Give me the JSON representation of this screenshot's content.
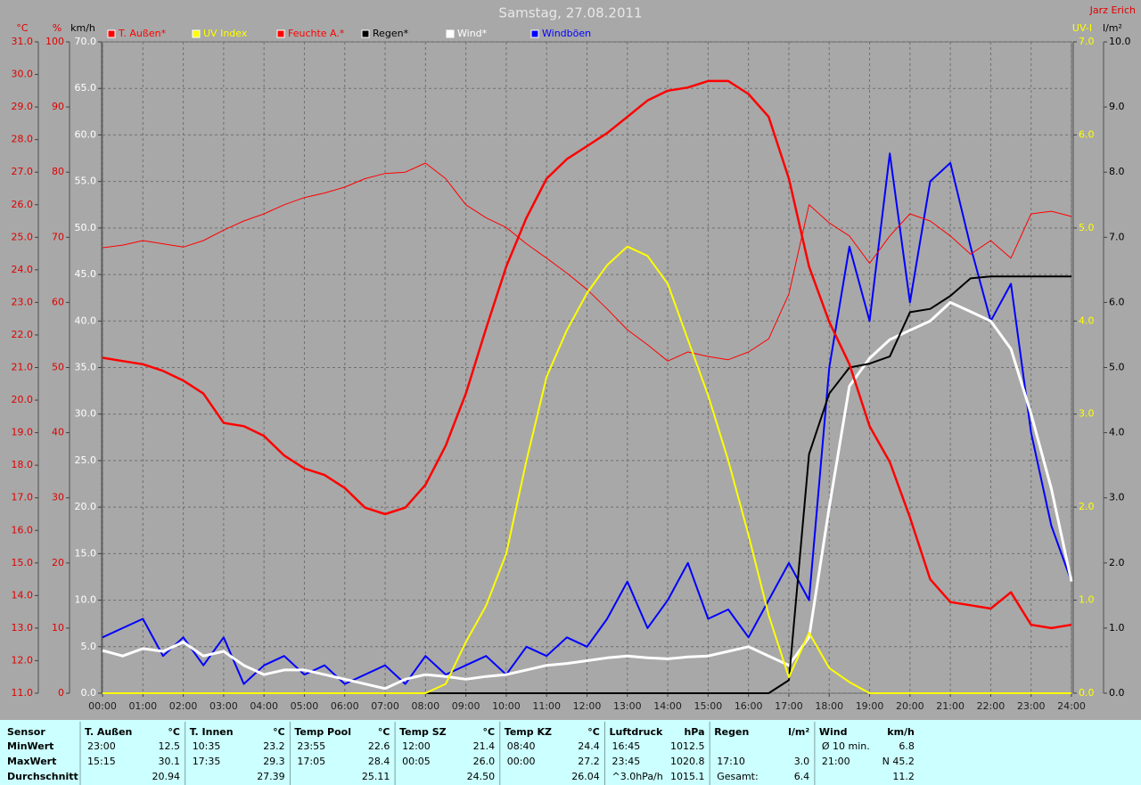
{
  "chart_data": {
    "type": "line",
    "title": "Samstag, 27.08.2011",
    "author": "Jarz Erich",
    "xlim": [
      0,
      24
    ],
    "xticks": [
      {
        "value": 0,
        "label": "00:00"
      },
      {
        "value": 1,
        "label": "01:00"
      },
      {
        "value": 2,
        "label": "02:00"
      },
      {
        "value": 3,
        "label": "03:00"
      },
      {
        "value": 4,
        "label": "04:00"
      },
      {
        "value": 5,
        "label": "05:00"
      },
      {
        "value": 6,
        "label": "06:00"
      },
      {
        "value": 7,
        "label": "07:00"
      },
      {
        "value": 8,
        "label": "08:00"
      },
      {
        "value": 9,
        "label": "09:00"
      },
      {
        "value": 10,
        "label": "10:00"
      },
      {
        "value": 11,
        "label": "11:00"
      },
      {
        "value": 12,
        "label": "12:00"
      },
      {
        "value": 13,
        "label": "13:00"
      },
      {
        "value": 14,
        "label": "14:00"
      },
      {
        "value": 15,
        "label": "15:00"
      },
      {
        "value": 16,
        "label": "16:00"
      },
      {
        "value": 17,
        "label": "17:00"
      },
      {
        "value": 18,
        "label": "18:00"
      },
      {
        "value": 19,
        "label": "19:00"
      },
      {
        "value": 20,
        "label": "20:00"
      },
      {
        "value": 21,
        "label": "21:00"
      },
      {
        "value": 22,
        "label": "22:00"
      },
      {
        "value": 23,
        "label": "23:00"
      },
      {
        "value": 24,
        "label": "24:00"
      }
    ],
    "y_axes": [
      {
        "label": "°C",
        "color": "#e00000",
        "ylim": [
          11,
          31
        ],
        "yticks": [
          {
            "value": 11,
            "label": "11.0"
          },
          {
            "value": 12,
            "label": "12.0"
          },
          {
            "value": 13,
            "label": "13.0"
          },
          {
            "value": 14,
            "label": "14.0"
          },
          {
            "value": 15,
            "label": "15.0"
          },
          {
            "value": 16,
            "label": "16.0"
          },
          {
            "value": 17,
            "label": "17.0"
          },
          {
            "value": 18,
            "label": "18.0"
          },
          {
            "value": 19,
            "label": "19.0"
          },
          {
            "value": 20,
            "label": "20.0"
          },
          {
            "value": 21,
            "label": "21.0"
          },
          {
            "value": 22,
            "label": "22.0"
          },
          {
            "value": 23,
            "label": "23.0"
          },
          {
            "value": 24,
            "label": "24.0"
          },
          {
            "value": 25,
            "label": "25.0"
          },
          {
            "value": 26,
            "label": "26.0"
          },
          {
            "value": 27,
            "label": "27.0"
          },
          {
            "value": 28,
            "label": "28.0"
          },
          {
            "value": 29,
            "label": "29.0"
          },
          {
            "value": 30,
            "label": "30.0"
          },
          {
            "value": 31,
            "label": "31.0"
          }
        ]
      },
      {
        "label": "%",
        "color": "#e00000",
        "ylim": [
          0,
          100
        ],
        "yticks": [
          0,
          10,
          20,
          30,
          40,
          50,
          60,
          70,
          80,
          90,
          100
        ]
      },
      {
        "label": "km/h",
        "color": "#ffffff",
        "ylim": [
          0,
          70
        ],
        "grid": true,
        "yticks": [
          {
            "value": 0,
            "label": "0.0"
          },
          {
            "value": 5,
            "label": "5.0"
          },
          {
            "value": 10,
            "label": "10.0"
          },
          {
            "value": 15,
            "label": "15.0"
          },
          {
            "value": 20,
            "label": "20.0"
          },
          {
            "value": 25,
            "label": "25.0"
          },
          {
            "value": 30,
            "label": "30.0"
          },
          {
            "value": 35,
            "label": "35.0"
          },
          {
            "value": 40,
            "label": "40.0"
          },
          {
            "value": 45,
            "label": "45.0"
          },
          {
            "value": 50,
            "label": "50.0"
          },
          {
            "value": 55,
            "label": "55.0"
          },
          {
            "value": 60,
            "label": "60.0"
          },
          {
            "value": 65,
            "label": "65.0"
          },
          {
            "value": 70,
            "label": "70.0"
          }
        ]
      },
      {
        "label": "UV-I",
        "color": "#ffff00",
        "ylim": [
          0,
          7
        ],
        "yticks": [
          {
            "value": 0,
            "label": "0.0"
          },
          {
            "value": 1,
            "label": "1.0"
          },
          {
            "value": 2,
            "label": "2.0"
          },
          {
            "value": 3,
            "label": "3.0"
          },
          {
            "value": 4,
            "label": "4.0"
          },
          {
            "value": 5,
            "label": "5.0"
          },
          {
            "value": 6,
            "label": "6.0"
          },
          {
            "value": 7,
            "label": "7.0"
          }
        ]
      },
      {
        "label": "l/m²",
        "color": "#000000",
        "ylim": [
          0,
          10
        ],
        "yticks": [
          {
            "value": 0,
            "label": "0.0"
          },
          {
            "value": 1,
            "label": "1.0"
          },
          {
            "value": 2,
            "label": "2.0"
          },
          {
            "value": 3,
            "label": "3.0"
          },
          {
            "value": 4,
            "label": "4.0"
          },
          {
            "value": 5,
            "label": "5.0"
          },
          {
            "value": 6,
            "label": "6.0"
          },
          {
            "value": 7,
            "label": "7.0"
          },
          {
            "value": 8,
            "label": "8.0"
          },
          {
            "value": 9,
            "label": "9.0"
          },
          {
            "value": 10,
            "label": "10.0"
          }
        ]
      }
    ],
    "x": [
      0,
      0.5,
      1,
      1.5,
      2,
      2.5,
      3,
      3.5,
      4,
      4.5,
      5,
      5.5,
      6,
      6.5,
      7,
      7.5,
      8,
      8.5,
      9,
      9.5,
      10,
      10.5,
      11,
      11.5,
      12,
      12.5,
      13,
      13.5,
      14,
      14.5,
      15,
      15.5,
      16,
      16.5,
      17,
      17.5,
      18,
      18.5,
      19,
      19.5,
      20,
      20.5,
      21,
      21.5,
      22,
      22.5,
      23,
      23.5,
      24
    ],
    "series": [
      {
        "name": "T. Außen*",
        "color": "#ff0000",
        "axis": 0,
        "width": 2.5,
        "values": [
          21.3,
          21.2,
          21.1,
          20.9,
          20.6,
          20.2,
          19.3,
          19.2,
          18.9,
          18.3,
          17.9,
          17.7,
          17.3,
          16.7,
          16.5,
          16.7,
          17.4,
          18.6,
          20.2,
          22.2,
          24.1,
          25.6,
          26.8,
          27.4,
          27.8,
          28.2,
          28.7,
          29.2,
          29.5,
          29.6,
          29.8,
          29.8,
          29.4,
          28.7,
          26.8,
          24.1,
          22.4,
          21.1,
          19.2,
          18.1,
          16.4,
          14.5,
          13.8,
          13.7,
          13.6,
          14.1,
          13.1,
          13.0,
          13.1
        ]
      },
      {
        "name": "UV Index",
        "color": "#ffff00",
        "axis": 3,
        "width": 2,
        "values": [
          0,
          0,
          0,
          0,
          0,
          0,
          0,
          0,
          0,
          0,
          0,
          0,
          0,
          0,
          0,
          0,
          0,
          0.1,
          0.55,
          0.94,
          1.5,
          2.5,
          3.4,
          3.9,
          4.3,
          4.6,
          4.8,
          4.7,
          4.4,
          3.8,
          3.2,
          2.5,
          1.7,
          0.84,
          0.17,
          0.65,
          0.27,
          0.12,
          0,
          0,
          0,
          0,
          0,
          0,
          0,
          0,
          0,
          0,
          0
        ]
      },
      {
        "name": "Feuchte A.*",
        "color": "#ff0000",
        "axis": 1,
        "width": 1,
        "values": [
          68.4,
          68.8,
          69.5,
          69.0,
          68.5,
          69.5,
          71.1,
          72.5,
          73.6,
          75.0,
          76.1,
          76.8,
          77.7,
          79.0,
          79.8,
          80.0,
          81.4,
          79.0,
          75.0,
          73.0,
          71.5,
          69.0,
          66.8,
          64.5,
          62.0,
          59.0,
          55.8,
          53.5,
          51.0,
          52.4,
          51.7,
          51.2,
          52.4,
          54.4,
          61.3,
          75.0,
          72.2,
          70.2,
          66.0,
          70.2,
          73.6,
          72.5,
          70.2,
          67.4,
          69.5,
          66.8,
          73.6,
          74.0,
          73.2
        ]
      },
      {
        "name": "Regen*",
        "color": "#000000",
        "axis": 4,
        "width": 2,
        "values": [
          0,
          0,
          0,
          0,
          0,
          0,
          0,
          0,
          0,
          0,
          0,
          0,
          0,
          0,
          0,
          0,
          0,
          0,
          0,
          0,
          0,
          0,
          0,
          0,
          0,
          0,
          0,
          0,
          0,
          0,
          0,
          0,
          0,
          0,
          0.2,
          3.67,
          4.6,
          5.0,
          5.06,
          5.17,
          5.85,
          5.9,
          6.1,
          6.37,
          6.4,
          6.4,
          6.4,
          6.4,
          6.4
        ]
      },
      {
        "name": "Wind*",
        "color": "#ffffff",
        "axis": 2,
        "width": 3,
        "values": [
          4.6,
          4.0,
          4.8,
          4.5,
          5.5,
          4.0,
          4.5,
          3.0,
          2.0,
          2.5,
          2.5,
          2.0,
          1.5,
          1.0,
          0.5,
          1.5,
          2.0,
          1.8,
          1.5,
          1.8,
          2.0,
          2.5,
          3.0,
          3.2,
          3.5,
          3.8,
          4.0,
          3.8,
          3.7,
          3.9,
          4.0,
          4.5,
          5.0,
          4.0,
          3.0,
          6.0,
          20.0,
          33.0,
          36.0,
          38.0,
          39.0,
          40.0,
          42.0,
          41.0,
          40.0,
          37.0,
          30.0,
          22.0,
          12.0
        ]
      },
      {
        "name": "Windböen",
        "color": "#0000ff",
        "axis": 2,
        "width": 2,
        "values": [
          6,
          7,
          8,
          4,
          6,
          3,
          6,
          1,
          3,
          4,
          2,
          3,
          1,
          2,
          3,
          1,
          4,
          2,
          3,
          4,
          2,
          5,
          4,
          6,
          5,
          8,
          12,
          7,
          10,
          14,
          8,
          9,
          6,
          10,
          14,
          10,
          35,
          48,
          40,
          58,
          42,
          55,
          57,
          48,
          40,
          44,
          28,
          18,
          12
        ]
      }
    ]
  },
  "stats_table": {
    "row_labels": [
      "Sensor",
      "MinWert",
      "MaxWert",
      "Durchschnitt"
    ],
    "columns": [
      {
        "name": "T. Außen",
        "unit": "°C",
        "min_time": "23:00",
        "min": "12.5",
        "max_time": "15:15",
        "max": "30.1",
        "avg": "20.94"
      },
      {
        "name": "T. Innen",
        "unit": "°C",
        "min_time": "10:35",
        "min": "23.2",
        "max_time": "17:35",
        "max": "29.3",
        "avg": "27.39"
      },
      {
        "name": "Temp Pool",
        "unit": "°C",
        "min_time": "23:55",
        "min": "22.6",
        "max_time": "17:05",
        "max": "28.4",
        "avg": "25.11"
      },
      {
        "name": "Temp SZ",
        "unit": "°C",
        "min_time": "12:00",
        "min": "21.4",
        "max_time": "00:05",
        "max": "26.0",
        "avg": "24.50"
      },
      {
        "name": "Temp KZ",
        "unit": "°C",
        "min_time": "08:40",
        "min": "24.4",
        "max_time": "00:00",
        "max": "27.2",
        "avg": "26.04"
      },
      {
        "name": "Luftdruck",
        "unit": "hPa",
        "min_time": "16:45",
        "min": "1012.5",
        "max_time": "23:45",
        "max": "1020.8",
        "avg_time": "^3.0hPa/h",
        "avg": "1015.1"
      },
      {
        "name": "Regen",
        "unit": "l/m²",
        "max_time": "17:10",
        "max": "3.0",
        "avg_time": "Gesamt:",
        "avg": "6.4"
      },
      {
        "name": "Wind",
        "unit": "km/h",
        "min_time": "Ø 10 min.",
        "min": "6.8",
        "max_time": "21:00",
        "max": "N 45.2",
        "avg": "11.2"
      }
    ]
  }
}
